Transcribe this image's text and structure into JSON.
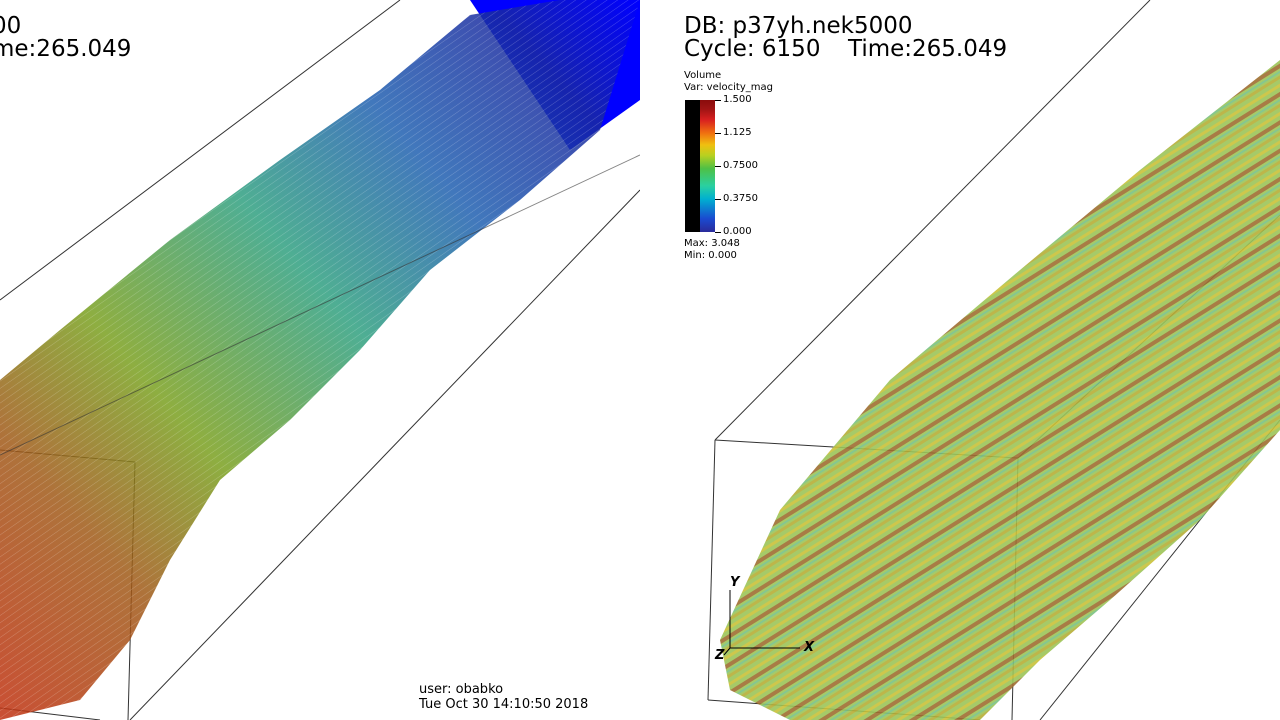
{
  "left_view": {
    "db_line": "00",
    "time_line": "me:265.049",
    "user_line": "user: obabko",
    "date_line": "Tue Oct 30 14:10:50 2018"
  },
  "right_view": {
    "db_line": "DB: p37yh.nek5000",
    "cycle_line": "Cycle: 6150",
    "time_line": "Time:265.049",
    "legend": {
      "title": "Volume",
      "var": "Var: velocity_mag",
      "ticks": [
        "1.500",
        "1.125",
        "0.7500",
        "0.3750",
        "0.000"
      ],
      "max": "Max:  3.048",
      "min": "Min:  0.000"
    },
    "axes": {
      "y": "Y",
      "x": "X",
      "z": "Z"
    }
  },
  "colors": {
    "left_low": "#2c2c98",
    "left_mid": "#3aa070",
    "left_high": "#b83010",
    "left_top_blue": "#0000ff",
    "right_base": "#8cbf50",
    "right_streak": "#a02810"
  }
}
